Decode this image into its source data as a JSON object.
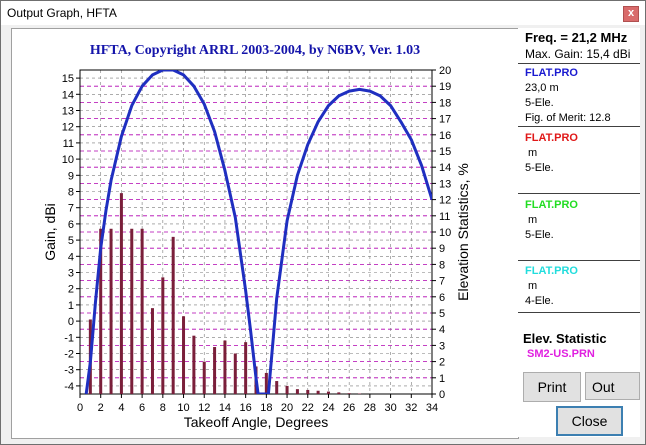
{
  "window": {
    "title": "Output Graph, HFTA",
    "close_glyph": "x"
  },
  "colors": {
    "title_blue": "#1414aa",
    "curve": "#1f2fc0",
    "bars": "#7a1f3a",
    "grid": "#b000b0"
  },
  "chart_data": {
    "type": "line",
    "title": "HFTA, Copyright ARRL 2003-2004, by N6BV, Ver. 1.03",
    "xlabel": "Takeoff Angle, Degrees",
    "ylabel": "Gain, dBi",
    "y2label": "Elevation Statistics, %",
    "xlim": [
      0,
      34
    ],
    "ylim": [
      -4.5,
      15.5
    ],
    "y2lim": [
      0,
      20
    ],
    "grid": true,
    "x_ticks": [
      0,
      2,
      4,
      6,
      8,
      10,
      12,
      14,
      16,
      18,
      20,
      22,
      24,
      26,
      28,
      30,
      32,
      34
    ],
    "y_ticks": [
      -4,
      -3,
      -2,
      -1,
      0,
      1,
      2,
      3,
      4,
      5,
      6,
      7,
      8,
      9,
      10,
      11,
      12,
      13,
      14,
      15
    ],
    "y2_ticks": [
      0,
      1,
      2,
      3,
      4,
      5,
      6,
      7,
      8,
      9,
      10,
      11,
      12,
      13,
      14,
      15,
      16,
      17,
      18,
      19,
      20
    ],
    "series": [
      {
        "name": "FLAT.PRO",
        "x": [
          0.6,
          1.0,
          1.5,
          2.0,
          2.5,
          3.0,
          4.0,
          5.0,
          6.0,
          7.0,
          8.0,
          9.0,
          10.0,
          11.0,
          12.0,
          13.0,
          14.0,
          15.0,
          16.0,
          16.5,
          17.0,
          17.2,
          17.5,
          17.8,
          18.2,
          19.0,
          20.0,
          21.0,
          22.0,
          23.0,
          24.0,
          25.0,
          26.0,
          27.0,
          28.0,
          29.0,
          30.0,
          31.0,
          32.0,
          33.0,
          34.0
        ],
        "y": [
          -4.5,
          -2.5,
          1.2,
          4.5,
          6.8,
          8.7,
          11.4,
          13.3,
          14.5,
          15.2,
          15.5,
          15.5,
          15.2,
          14.5,
          13.4,
          11.7,
          9.3,
          6.4,
          1.9,
          -0.7,
          -3.5,
          -4.5,
          -4.5,
          -4.5,
          -4.5,
          1.4,
          6.2,
          9.0,
          10.9,
          12.3,
          13.3,
          13.9,
          14.2,
          14.3,
          14.2,
          13.9,
          13.3,
          12.3,
          11.2,
          9.6,
          7.5
        ]
      },
      {
        "name": "SM2-US.PRN",
        "axis": "right",
        "x": [
          1,
          2,
          3,
          4,
          5,
          6,
          7,
          8,
          9,
          10,
          11,
          12,
          13,
          14,
          15,
          16,
          17,
          18,
          19,
          20,
          21,
          22,
          23,
          24,
          25,
          26,
          27
        ],
        "y": [
          4.6,
          10.2,
          10.2,
          12.4,
          10.2,
          10.2,
          5.3,
          7.2,
          9.7,
          4.8,
          3.6,
          2.0,
          2.9,
          3.3,
          2.5,
          3.2,
          1.7,
          1.3,
          0.8,
          0.5,
          0.3,
          0.25,
          0.2,
          0.15,
          0.1,
          0.05,
          0.03
        ]
      }
    ]
  },
  "side": {
    "freq": "Freq. = 21,2 MHz",
    "max_gain": "Max. Gain: 15,4 dBi",
    "entries": [
      {
        "name": "FLAT.PRO",
        "color": "#1a1ad0",
        "line1": "23,0 m",
        "line2": "5-Ele.",
        "line3": "Fig. of Merit:  12.8"
      },
      {
        "name": "FLAT.PRO",
        "color": "#e01818",
        "line1": " m",
        "line2": "5-Ele.",
        "line3": ""
      },
      {
        "name": "FLAT.PRO",
        "color": "#22dd22",
        "line1": " m",
        "line2": "5-Ele.",
        "line3": ""
      },
      {
        "name": "FLAT.PRO",
        "color": "#22dddd",
        "line1": " m",
        "line2": "4-Ele.",
        "line3": ""
      }
    ],
    "elev_title": "Elev. Statistic",
    "elev_file": "SM2-US.PRN",
    "elev_color": "#e020e0"
  },
  "buttons": {
    "print": "Print",
    "out_file": "Out File",
    "close": "Close"
  }
}
